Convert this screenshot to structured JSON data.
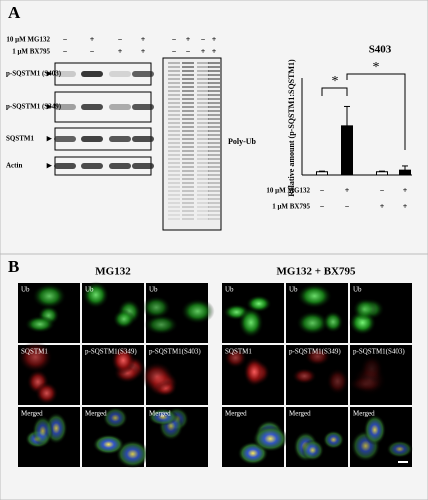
{
  "figure": {
    "panel_a": {
      "letter": "A",
      "treatments": [
        {
          "label": "10 μM MG132",
          "signs": [
            "−",
            "+",
            "−",
            "+"
          ]
        },
        {
          "label": "1 μM BX795",
          "signs": [
            "−",
            "−",
            "+",
            "+"
          ]
        }
      ],
      "blot_labels": [
        "p-SQSTM1 (S403)",
        "p-SQSTM1 (S349)",
        "SQSTM1",
        "Actin"
      ],
      "polyub_label": "Poly-Ub"
    },
    "panel_b": {
      "letter": "B",
      "group_titles": [
        "MG132",
        "MG132 + BX795"
      ],
      "row_labels": [
        [
          "Ub",
          "Ub",
          "Ub"
        ],
        [
          "SQSTM1",
          "p-SQSTM1(S349)",
          "p-SQSTM1(S403)"
        ],
        [
          "Merged",
          "Merged",
          "Merged"
        ]
      ]
    }
  },
  "chart_data": {
    "type": "bar",
    "title": "S403",
    "y_label": "Relative amount (p-SQSTM1:SQSTM1)",
    "values": [
      1.0,
      15.2,
      1.0,
      1.5
    ],
    "errors": [
      0.2,
      6.0,
      0.2,
      1.3
    ],
    "colors": [
      "#ffffff",
      "#000000",
      "#ffffff",
      "#000000"
    ],
    "conditions": [
      {
        "label": "10 μM MG132",
        "signs": [
          "−",
          "+",
          "−",
          "+"
        ]
      },
      {
        "label": "1 μM BX795",
        "signs": [
          "−",
          "−",
          "+",
          "+"
        ]
      }
    ],
    "annotations": [
      "*",
      "*"
    ],
    "ylim": [
      0,
      30
    ]
  }
}
